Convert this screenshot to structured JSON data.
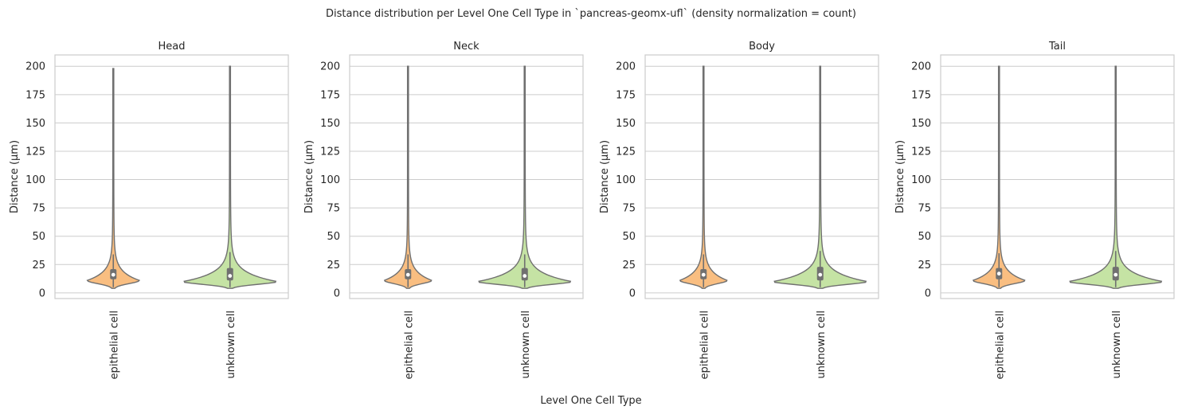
{
  "title": "Distance distribution per Level One Cell Type in `pancreas-geomx-ufl` (density normalization = count)",
  "xlabel": "Level One Cell Type",
  "chart_data": {
    "type": "violin",
    "title": "Distance distribution per Level One Cell Type in `pancreas-geomx-ufl` (density normalization = count)",
    "xlabel": "Level One Cell Type",
    "ylabel": "Distance (µm)",
    "ylim": [
      -5,
      210
    ],
    "yticks": [
      0,
      25,
      50,
      75,
      100,
      125,
      150,
      175,
      200
    ],
    "categories": [
      "epithelial cell",
      "unknown cell"
    ],
    "colors": {
      "epithelial cell": "#f9be81",
      "unknown cell": "#c5e3a4"
    },
    "grid": true,
    "panels": [
      {
        "title": "Head",
        "series": [
          {
            "name": "epithelial cell",
            "min": 4,
            "max": 198,
            "q1": 12,
            "median": 16,
            "q3": 21,
            "whisker_low": 5,
            "whisker_high": 34,
            "max_half_width": 0.22,
            "mode": 11
          },
          {
            "name": "unknown cell",
            "min": 4,
            "max": 200,
            "q1": 11,
            "median": 15,
            "q3": 22,
            "whisker_low": 5,
            "whisker_high": 36,
            "max_half_width": 0.4,
            "mode": 10
          }
        ]
      },
      {
        "title": "Neck",
        "series": [
          {
            "name": "epithelial cell",
            "min": 4,
            "max": 200,
            "q1": 12,
            "median": 16,
            "q3": 21,
            "whisker_low": 5,
            "whisker_high": 34,
            "max_half_width": 0.2,
            "mode": 11
          },
          {
            "name": "unknown cell",
            "min": 4,
            "max": 200,
            "q1": 11,
            "median": 15,
            "q3": 22,
            "whisker_low": 5,
            "whisker_high": 34,
            "max_half_width": 0.4,
            "mode": 10
          }
        ]
      },
      {
        "title": "Body",
        "series": [
          {
            "name": "epithelial cell",
            "min": 4,
            "max": 200,
            "q1": 12,
            "median": 16,
            "q3": 21,
            "whisker_low": 5,
            "whisker_high": 34,
            "max_half_width": 0.2,
            "mode": 11
          },
          {
            "name": "unknown cell",
            "min": 4,
            "max": 200,
            "q1": 11,
            "median": 16,
            "q3": 23,
            "whisker_low": 5,
            "whisker_high": 37,
            "max_half_width": 0.4,
            "mode": 10
          }
        ]
      },
      {
        "title": "Tail",
        "series": [
          {
            "name": "epithelial cell",
            "min": 4,
            "max": 200,
            "q1": 12,
            "median": 17,
            "q3": 22,
            "whisker_low": 5,
            "whisker_high": 35,
            "max_half_width": 0.22,
            "mode": 11
          },
          {
            "name": "unknown cell",
            "min": 4,
            "max": 200,
            "q1": 11,
            "median": 16,
            "q3": 23,
            "whisker_low": 5,
            "whisker_high": 37,
            "max_half_width": 0.4,
            "mode": 10
          }
        ]
      }
    ]
  }
}
